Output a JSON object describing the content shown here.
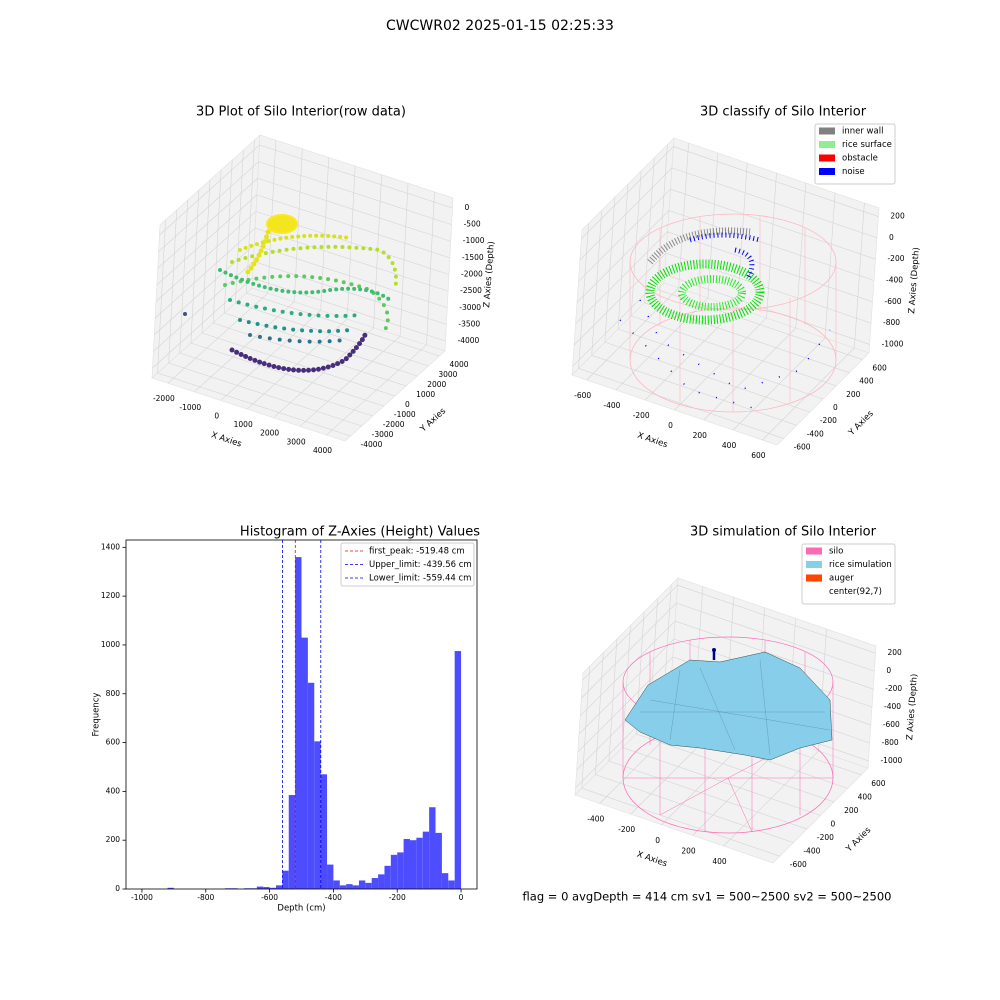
{
  "title": "CWCWR02 2025-01-15 02:25:33",
  "status": "flag = 0     avgDepth = 414 cm  sv1 = 500~2500  sv2 = 500~2500",
  "chart_data": [
    {
      "type": "scatter3d",
      "title": "3D Plot of Silo Interior(row data)",
      "xlabel": "X Axies",
      "ylabel": "Y Axies",
      "zlabel": "Z Axies (Depth)",
      "xlim": [
        -2600,
        4700
      ],
      "xticks": [
        -2000,
        -1000,
        0,
        1000,
        2000,
        3000,
        4000
      ],
      "ylim": [
        -4500,
        4500
      ],
      "yticks": [
        -4000,
        -3000,
        -2000,
        -1000,
        0,
        1000,
        2000,
        3000,
        4000
      ],
      "zlim": [
        -4300,
        300
      ],
      "zticks": [
        0,
        -500,
        -1000,
        -1500,
        -2000,
        -2500,
        -3000,
        -3500,
        -4000
      ],
      "grid": true
    },
    {
      "type": "scatter3d",
      "title": "3D classify of Silo Interior",
      "xlabel": "X Axies",
      "ylabel": "Y Axies",
      "zlabel": "Z Axies (Depth)",
      "xlim": [
        -700,
        700
      ],
      "xticks": [
        -600,
        -400,
        -200,
        0,
        200,
        400,
        600
      ],
      "ylim": [
        -700,
        700
      ],
      "yticks": [
        -600,
        -400,
        -200,
        0,
        200,
        400,
        600
      ],
      "zlim": [
        -1080,
        280
      ],
      "zticks": [
        200,
        0,
        -200,
        -400,
        -600,
        -800,
        -1000
      ],
      "grid": true,
      "legend_loc": "upper right",
      "legend": [
        {
          "name": "inner wall",
          "color": "#808080"
        },
        {
          "name": "rice surface",
          "color": "#90ee90"
        },
        {
          "name": "obstacle",
          "color": "#ff0000"
        },
        {
          "name": "noise",
          "color": "#0000ff"
        }
      ]
    },
    {
      "type": "histogram",
      "title": "Histogram of Z-Axies (Height) Values",
      "xlabel": "Depth (cm)",
      "ylabel": "Frequency",
      "color": "#4d4dff",
      "bins": [
        -1020,
        -1000,
        -980,
        -960,
        -940,
        -920,
        -900,
        -880,
        -860,
        -840,
        -820,
        -800,
        -780,
        -760,
        -740,
        -720,
        -700,
        -680,
        -660,
        -640,
        -620,
        -600,
        -580,
        -560,
        -540,
        -520,
        -500,
        -480,
        -460,
        -440,
        -420,
        -400,
        -380,
        -360,
        -340,
        -320,
        -300,
        -280,
        -260,
        -240,
        -220,
        -200,
        -180,
        -160,
        -140,
        -120,
        -100,
        -80,
        -60,
        -40,
        -20,
        0
      ],
      "counts": [
        0,
        0,
        0,
        0,
        0,
        5,
        0,
        0,
        0,
        0,
        0,
        0,
        0,
        0,
        3,
        3,
        0,
        3,
        3,
        10,
        8,
        5,
        15,
        75,
        385,
        1360,
        1030,
        845,
        605,
        470,
        100,
        35,
        15,
        20,
        15,
        35,
        25,
        45,
        60,
        95,
        140,
        150,
        205,
        200,
        210,
        235,
        335,
        230,
        65,
        35,
        975
      ],
      "xlim": [
        -1050,
        50
      ],
      "xticks": [
        -1000,
        -800,
        -600,
        -400,
        -200,
        0
      ],
      "ylim": [
        0,
        1430
      ],
      "yticks": [
        0,
        200,
        400,
        600,
        800,
        1000,
        1200,
        1400
      ],
      "legend_loc": "upper right",
      "vlines": [
        {
          "name": "first_peak: -519.48 cm",
          "value": -519.48,
          "color": "#ff0000"
        },
        {
          "name": "Upper_limit: -439.56 cm",
          "value": -439.56,
          "color": "#0000ff"
        },
        {
          "name": "Lower_limit: -559.44 cm",
          "value": -559.44,
          "color": "#0000ff"
        }
      ]
    },
    {
      "type": "surface3d",
      "title": "3D simulation of Silo Interior",
      "xlabel": "X Axies",
      "ylabel": "Y Axies",
      "zlabel": "Z Axies (Depth)",
      "xlim": [
        -560,
        720
      ],
      "xticks": [
        -400,
        -200,
        0,
        200,
        400
      ],
      "ylim": [
        -700,
        700
      ],
      "yticks": [
        -600,
        -400,
        -200,
        0,
        200,
        400,
        600
      ],
      "zlim": [
        -1080,
        280
      ],
      "zticks": [
        200,
        0,
        -200,
        -400,
        -600,
        -800,
        -1000
      ],
      "grid": true,
      "legend_loc": "upper right",
      "legend": [
        {
          "name": "silo",
          "color": "#ff69b4"
        },
        {
          "name": "rice simulation",
          "color": "#87ceeb"
        },
        {
          "name": "auger",
          "color": "#ff4500"
        },
        {
          "name": "center(92,7)",
          "color": "#ffffff"
        }
      ]
    }
  ]
}
